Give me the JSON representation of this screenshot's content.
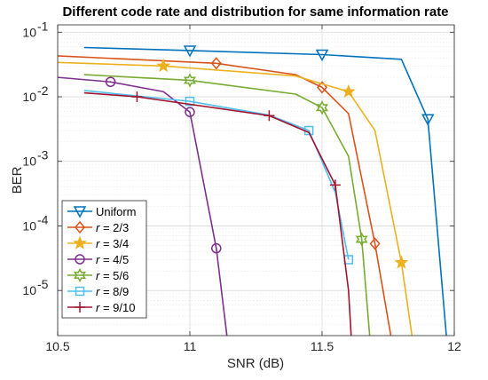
{
  "chart_data": {
    "type": "line",
    "title": "Different code rate and distribution for same information rate",
    "xlabel": "SNR (dB)",
    "ylabel": "BER",
    "xlim": [
      10.5,
      12
    ],
    "ylim": [
      2e-06,
      0.13
    ],
    "yscale": "log",
    "grid": "major and minor",
    "legend_position": "bottom-left",
    "x_ticks": [
      "10.5",
      "11",
      "11.5",
      "12"
    ],
    "y_ticks": [
      {
        "exp": "-5",
        "value": 1e-05
      },
      {
        "exp": "-4",
        "value": 0.0001
      },
      {
        "exp": "-3",
        "value": 0.001
      },
      {
        "exp": "-2",
        "value": 0.01
      },
      {
        "exp": "-1",
        "value": 0.1
      }
    ],
    "series": [
      {
        "name": "Uniform",
        "legend_prefix": "",
        "legend_value": "Uniform",
        "color": "#0072BD",
        "marker": "triangle-down",
        "x": [
          10.6,
          11.0,
          11.5,
          11.8,
          11.9,
          11.97
        ],
        "y": [
          0.058,
          0.052,
          0.045,
          0.038,
          0.0045,
          2e-06
        ],
        "marker_x": [
          11.0,
          11.5,
          11.9
        ]
      },
      {
        "name": "r = 2/3",
        "legend_prefix": "r",
        "legend_value": " = 2/3",
        "color": "#D95319",
        "marker": "diamond",
        "x": [
          10.5,
          11.1,
          11.4,
          11.5,
          11.6,
          11.7,
          11.76
        ],
        "y": [
          0.043,
          0.033,
          0.022,
          0.014,
          0.0055,
          5.3e-05,
          2e-06
        ],
        "marker_x": [
          11.1,
          11.5,
          11.7
        ]
      },
      {
        "name": "r = 3/4",
        "legend_prefix": "r",
        "legend_value": " = 3/4",
        "color": "#EDB120",
        "marker": "star",
        "x": [
          10.5,
          10.9,
          11.4,
          11.6,
          11.7,
          11.8,
          11.84
        ],
        "y": [
          0.034,
          0.03,
          0.021,
          0.012,
          0.003,
          2.7e-05,
          2e-06
        ],
        "marker_x": [
          10.9,
          11.6,
          11.8
        ]
      },
      {
        "name": "r = 4/5",
        "legend_prefix": "r",
        "legend_value": " = 4/5",
        "color": "#7E2F8E",
        "marker": "circle",
        "x": [
          10.5,
          10.7,
          10.9,
          11.0,
          11.1,
          11.14
        ],
        "y": [
          0.02,
          0.017,
          0.012,
          0.0058,
          4.5e-05,
          2e-06
        ],
        "marker_x": [
          10.7,
          11.0,
          11.1
        ]
      },
      {
        "name": "r = 5/6",
        "legend_prefix": "r",
        "legend_value": " = 5/6",
        "color": "#77AC30",
        "marker": "hexagram",
        "x": [
          10.6,
          11.0,
          11.4,
          11.5,
          11.6,
          11.65,
          11.68
        ],
        "y": [
          0.022,
          0.018,
          0.011,
          0.0068,
          0.0012,
          6.2e-05,
          2e-06
        ],
        "marker_x": [
          11.0,
          11.5,
          11.65
        ]
      },
      {
        "name": "r = 8/9",
        "legend_prefix": "r",
        "legend_value": " = 8/9",
        "color": "#4DBEEE",
        "marker": "square",
        "x": [
          10.6,
          11.0,
          11.3,
          11.45,
          11.55,
          11.6
        ],
        "y": [
          0.0125,
          0.0085,
          0.0052,
          0.003,
          0.00033,
          3e-05
        ],
        "marker_x": [
          11.0,
          11.45,
          11.6
        ]
      },
      {
        "name": "r = 9/10",
        "legend_prefix": "r",
        "legend_value": " = 9/10",
        "color": "#A2142F",
        "marker": "plus",
        "x": [
          10.6,
          10.8,
          11.3,
          11.45,
          11.55,
          11.6,
          11.61
        ],
        "y": [
          0.0115,
          0.01,
          0.0051,
          0.0028,
          0.00043,
          1e-05,
          2e-06
        ],
        "marker_x": [
          10.8,
          11.3,
          11.55
        ]
      }
    ]
  }
}
